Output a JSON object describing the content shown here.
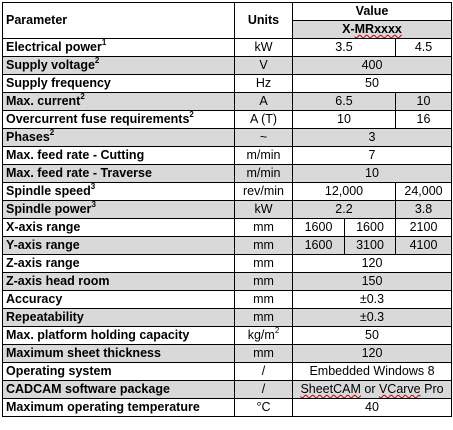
{
  "header": {
    "parameter": "Parameter",
    "units": "Units",
    "value": "Value",
    "model_prefix": "X-",
    "model_rest": "MRxxxx"
  },
  "rows": {
    "electrical_power": {
      "label": "Electrical power",
      "sup": "1",
      "unit": "kW",
      "values": [
        "3.5",
        "4.5"
      ]
    },
    "supply_voltage": {
      "label": "Supply voltage",
      "sup": "2",
      "unit": "V",
      "values": [
        "400"
      ]
    },
    "supply_frequency": {
      "label": "Supply frequency",
      "unit": "Hz",
      "values": [
        "50"
      ]
    },
    "max_current": {
      "label": "Max. current",
      "sup": "2",
      "unit": "A",
      "values": [
        "6.5",
        "10"
      ]
    },
    "overcurrent_fuse": {
      "label": "Overcurrent fuse requirements",
      "sup": "2",
      "unit": "A (T)",
      "values": [
        "10",
        "16"
      ]
    },
    "phases": {
      "label": "Phases",
      "sup": "2",
      "unit": "~",
      "values": [
        "3"
      ]
    },
    "feed_cutting": {
      "label": "Max. feed rate - Cutting",
      "unit": "m/min",
      "values": [
        "7"
      ]
    },
    "feed_traverse": {
      "label": "Max. feed rate - Traverse",
      "unit": "m/min",
      "values": [
        "10"
      ]
    },
    "spindle_speed": {
      "label": "Spindle speed",
      "sup": "3",
      "unit": "rev/min",
      "values": [
        "12,000",
        "24,000"
      ]
    },
    "spindle_power": {
      "label": "Spindle power",
      "sup": "3",
      "unit": "kW",
      "values": [
        "2.2",
        "3.8"
      ]
    },
    "x_axis": {
      "label": "X-axis range",
      "unit": "mm",
      "values": [
        "1600",
        "1600",
        "2100"
      ]
    },
    "y_axis": {
      "label": "Y-axis range",
      "unit": "mm",
      "values": [
        "1600",
        "3100",
        "4100"
      ]
    },
    "z_axis": {
      "label": "Z-axis range",
      "unit": "mm",
      "values": [
        "120"
      ]
    },
    "z_headroom": {
      "label": "Z-axis head room",
      "unit": "mm",
      "values": [
        "150"
      ]
    },
    "accuracy": {
      "label": "Accuracy",
      "unit": "mm",
      "values": [
        "±0.3"
      ]
    },
    "repeatability": {
      "label": "Repeatability",
      "unit": "mm",
      "values": [
        "±0.3"
      ]
    },
    "platform_capacity": {
      "label": "Max. platform holding capacity",
      "unit": "kg/m",
      "unit_sup": "2",
      "values": [
        "50"
      ]
    },
    "sheet_thickness": {
      "label": "Maximum sheet thickness",
      "unit": "mm",
      "values": [
        "120"
      ]
    },
    "os": {
      "label": "Operating system",
      "unit": "/",
      "values": [
        "Embedded Windows 8"
      ]
    },
    "cadcam": {
      "label": "CADCAM software package",
      "unit": "/",
      "value_a": "SheetCAM",
      "value_b": " or ",
      "value_c": "VCarve",
      "value_d": " Pro"
    },
    "max_temp": {
      "label": "Maximum operating temperature",
      "unit": "°C",
      "values": [
        "40"
      ]
    }
  },
  "colors": {
    "shaded_row": "#d9d9d9",
    "border": "#000000",
    "spellcheck_underline": "#c00000"
  }
}
